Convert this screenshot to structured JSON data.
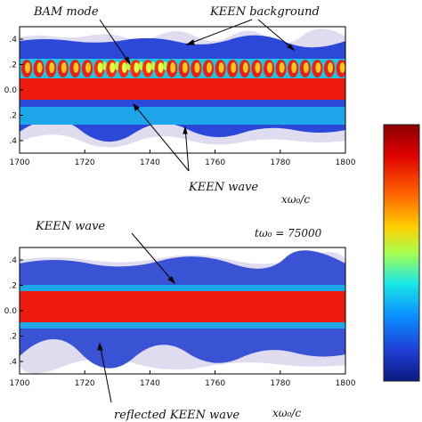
{
  "chart_data": [
    {
      "type": "heatmap",
      "panel": "top",
      "xlim": [
        1700,
        1800
      ],
      "x_ticks": [
        "1700",
        "1720",
        "1740",
        "1760",
        "1780",
        "1800"
      ],
      "y_ticks": [
        ".4",
        ".2",
        "0.0",
        ".2",
        ".4"
      ],
      "xlabel": "xω₀/c",
      "annotations": {
        "bam": "BAM mode",
        "keen_bg": "KEEN background",
        "keen_wave": "KEEN wave"
      }
    },
    {
      "type": "heatmap",
      "panel": "bottom",
      "xlim": [
        1700,
        1800
      ],
      "x_ticks": [
        "1700",
        "1720",
        "1740",
        "1760",
        "1780",
        "1800"
      ],
      "y_ticks": [
        ".4",
        ".2",
        "0.0",
        ".2",
        ".4"
      ],
      "xlabel": "xω₀/c",
      "time_label": "tω₀ = 75000",
      "annotations": {
        "keen_wave": "KEEN wave",
        "reflected": "reflected KEEN wave"
      }
    }
  ],
  "colorbar": {
    "colors": [
      "#8a0000",
      "#e00000",
      "#ff6a00",
      "#ffd000",
      "#a6ff4d",
      "#19e6e6",
      "#0a8cff",
      "#1f3fd6",
      "#0a1a80"
    ]
  }
}
